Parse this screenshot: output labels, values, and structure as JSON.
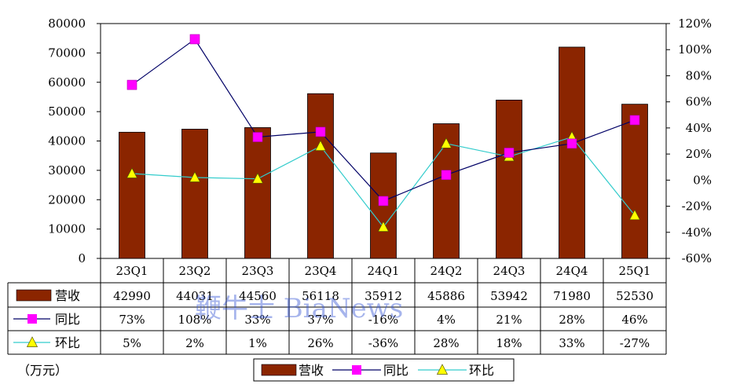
{
  "chart_data": {
    "type": "bar",
    "categories": [
      "23Q1",
      "23Q2",
      "23Q3",
      "23Q4",
      "24Q1",
      "24Q2",
      "24Q3",
      "24Q4",
      "25Q1"
    ],
    "ylim": [
      0,
      80000
    ],
    "y_ticks": [
      "80000",
      "70000",
      "60000",
      "50000",
      "40000",
      "30000",
      "20000",
      "10000",
      "0"
    ],
    "y2lim": [
      -60,
      120
    ],
    "y2_ticks": [
      "120%",
      "100%",
      "80%",
      "60%",
      "40%",
      "20%",
      "0%",
      "-20%",
      "-40%",
      "-60%"
    ],
    "unit_label": "（万元）",
    "grid": false,
    "legend_position": "bottom",
    "series": [
      {
        "name": "营收",
        "type": "bar",
        "axis": "left",
        "color": "#8b2500",
        "values": [
          42990,
          44031,
          44560,
          56118,
          35912,
          45886,
          53942,
          71980,
          52530
        ],
        "labels": [
          "42990",
          "44031",
          "44560",
          "56118",
          "35912",
          "45886",
          "53942",
          "71980",
          "52530"
        ]
      },
      {
        "name": "同比",
        "type": "line",
        "axis": "right",
        "color": "#000066",
        "marker_color": "#ff00ff",
        "marker": "square",
        "values": [
          73,
          108,
          33,
          37,
          -16,
          4,
          21,
          28,
          46
        ],
        "labels": [
          "73%",
          "108%",
          "33%",
          "37%",
          "-16%",
          "4%",
          "21%",
          "28%",
          "46%"
        ]
      },
      {
        "name": "环比",
        "type": "line",
        "axis": "right",
        "color": "#33cccc",
        "marker_color": "#ffff00",
        "marker": "triangle",
        "values": [
          5,
          2,
          1,
          26,
          -36,
          28,
          18,
          33,
          -27
        ],
        "labels": [
          "5%",
          "2%",
          "1%",
          "26%",
          "-36%",
          "28%",
          "18%",
          "33%",
          "-27%"
        ]
      }
    ]
  },
  "watermark": "鞭牛士 BiaNews"
}
